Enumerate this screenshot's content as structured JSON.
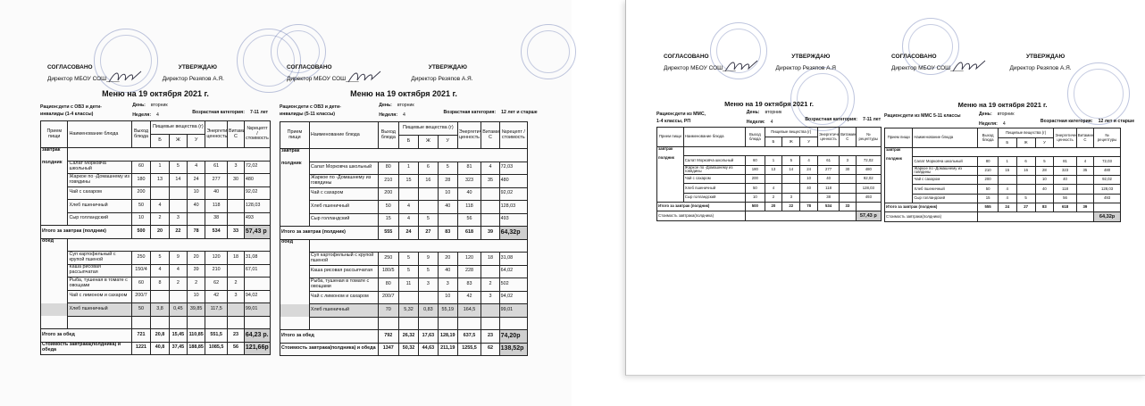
{
  "docs": [
    {
      "agreed": "СОГЛАСОВАНО",
      "agreed_by": "Директор МБОУ СОШ____",
      "approved": "УТВЕРЖДАЮ",
      "approved_by": "Директор Резяпов А.Я.",
      "title": "Меню на 19 октября 2021 г.",
      "ration": [
        "Рацион:дети с ОВЗ и дети-",
        "инвалиды (1-4 классы)"
      ],
      "day_label": "День:",
      "day": "вторник",
      "week_label": "Неделя:",
      "week": "4",
      "age_label": "Возрастная категория:",
      "age": "7-11 лет",
      "headers": {
        "meal": "Прием пищи",
        "name": "Наименование блюда",
        "yield": "Выход блюда",
        "nutrients": "Пищевые вещества (г)",
        "b": "Б",
        "zh": "Ж",
        "u": "У",
        "energy": "Энергетическая ценность",
        "vitc": "Витамин С",
        "last": "№рецепт /стоимость"
      },
      "rows": [
        {
          "meal": "завтрак",
          "empty": true
        },
        {
          "meal": "полдник",
          "cells": [
            "Салат Морковча школьный",
            "60",
            "1",
            "5",
            "4",
            "61",
            "3",
            "72,02"
          ]
        },
        {
          "cells": [
            "Жаркое по -Домашнему из говядины",
            "180",
            "13",
            "14",
            "24",
            "277",
            "30",
            "480"
          ]
        },
        {
          "cells": [
            "Чай с сахаром",
            "200",
            "",
            "",
            "10",
            "40",
            "",
            "92,02"
          ]
        },
        {
          "cells": [
            "Хлеб пшеничный",
            "50",
            "4",
            "",
            "40",
            "118",
            "",
            "128,03"
          ]
        },
        {
          "cells": [
            "Сыр голландский",
            "10",
            "2",
            "3",
            "",
            "38",
            "",
            "493"
          ]
        },
        {
          "total": true,
          "label": "Итого за завтрак (полдник)",
          "cells": [
            "500",
            "20",
            "22",
            "78",
            "534",
            "33",
            "57,43 р"
          ]
        },
        {
          "meal": "обед",
          "empty": true
        },
        {
          "cells": [
            "Суп картофельный с крупой пшеной",
            "250",
            "5",
            "9",
            "20",
            "120",
            "18",
            "31,08"
          ]
        },
        {
          "cells": [
            "Каша рисовая рассыпчатая",
            "150/4",
            "4",
            "4",
            "39",
            "210",
            "",
            "67,01"
          ]
        },
        {
          "cells": [
            "Рыба, тушеная в томате с овощами",
            "60",
            "8",
            "2",
            "2",
            "62",
            "2",
            ""
          ]
        },
        {
          "cells": [
            "Чай с лимоном и сахаром",
            "200/7",
            "",
            "",
            "10",
            "42",
            "3",
            "94,02"
          ]
        },
        {
          "shade": true,
          "cells": [
            "Хлеб пшеничный",
            "50",
            "3,8",
            "0,45",
            "39,85",
            "117,5",
            "",
            "99,01"
          ]
        },
        {
          "cells": [
            "",
            "",
            "",
            "",
            "",
            "",
            "",
            ""
          ]
        },
        {
          "total": true,
          "label": "Итого за обед",
          "cells": [
            "721",
            "20,8",
            "15,45",
            "110,85",
            "551,5",
            "23",
            "64,23 р."
          ]
        },
        {
          "total": true,
          "label": "Стоимость завтрака(полдника) и обеда",
          "cells": [
            "1221",
            "40,8",
            "37,45",
            "188,85",
            "1085,5",
            "56",
            "121,66р"
          ]
        }
      ]
    },
    {
      "agreed": "СОГЛАСОВАНО",
      "agreed_by": "Директор МБОУ СОШ____",
      "approved": "УТВЕРЖДАЮ",
      "approved_by": "Директор Резяпов А.Я.",
      "title": "Меню на 19 октября 2021 г.",
      "ration": [
        "Рацион:дети с ОВЗ и дети-",
        "инвалиды (5-11 классы)"
      ],
      "day_label": "День:",
      "day": "вторник",
      "week_label": "Неделя:",
      "week": "4",
      "age_label": "Возрастная категория:",
      "age": "12 лет и старше",
      "headers": {
        "meal": "Прием пищи",
        "name": "Наименование блюда",
        "yield": "Выход блюда",
        "nutrients": "Пищевые вещества (г)",
        "b": "Б",
        "zh": "Ж",
        "u": "У",
        "energy": "Энергетическая ценность",
        "vitc": "Витамин С",
        "last": "№рецепт /стоимость"
      },
      "rows": [
        {
          "meal": "завтрак",
          "empty": true
        },
        {
          "meal": "полдник",
          "cells": [
            "Салат Морковча школьный",
            "80",
            "1",
            "6",
            "5",
            "81",
            "4",
            "72,03"
          ]
        },
        {
          "cells": [
            "Жаркое по -Домашнему из говядины",
            "210",
            "15",
            "16",
            "28",
            "323",
            "35",
            "480"
          ]
        },
        {
          "cells": [
            "Чай с сахаром",
            "200",
            "",
            "",
            "10",
            "40",
            "",
            "92,02"
          ]
        },
        {
          "cells": [
            "Хлеб пшеничный",
            "50",
            "4",
            "",
            "40",
            "118",
            "",
            "128,03"
          ]
        },
        {
          "cells": [
            "Сыр голландский",
            "15",
            "4",
            "5",
            "",
            "56",
            "",
            "493"
          ]
        },
        {
          "total": true,
          "label": "Итого за завтрак (полдник)",
          "cells": [
            "555",
            "24",
            "27",
            "83",
            "618",
            "39",
            "64,32р"
          ]
        },
        {
          "meal": "обед",
          "empty": true
        },
        {
          "cells": [
            "Суп картофельный с крупой пшеной",
            "250",
            "5",
            "9",
            "20",
            "120",
            "18",
            "31,08"
          ]
        },
        {
          "cells": [
            "Каша рисовая рассыпчатая",
            "180/5",
            "5",
            "5",
            "40",
            "228",
            "",
            "64,02"
          ]
        },
        {
          "cells": [
            "Рыба, тушеная в томате с овощами",
            "80",
            "11",
            "3",
            "3",
            "83",
            "2",
            "502"
          ]
        },
        {
          "cells": [
            "Чай с лимоном и сахаром",
            "200/7",
            "",
            "",
            "10",
            "42",
            "3",
            "94,02"
          ]
        },
        {
          "shade": true,
          "cells": [
            "Хлеб пшеничный",
            "70",
            "5,32",
            "0,83",
            "55,19",
            "164,5",
            "",
            "99,01"
          ]
        },
        {
          "cells": [
            "",
            "",
            "",
            "",
            "",
            "",
            "",
            ""
          ]
        },
        {
          "total": true,
          "label": "Итого за обед",
          "cells": [
            "792",
            "26,32",
            "17,63",
            "128,19",
            "637,5",
            "23",
            "74,20р"
          ]
        },
        {
          "total": true,
          "label": "Стоимость завтрака(полдника) и обеда",
          "cells": [
            "1347",
            "50,32",
            "44,63",
            "211,19",
            "1255,5",
            "62",
            "138,52р"
          ]
        }
      ]
    },
    {
      "agreed": "СОГЛАСОВАНО",
      "agreed_by": "Директор МБОУ СОШ____",
      "approved": "УТВЕРЖДАЮ",
      "approved_by": "Директор Резяпов А.Я",
      "title": "Меню на 19 октября 2021 г.",
      "ration": [
        "Рацион:дети из ММС,",
        "1-4 классы, РП"
      ],
      "day_label": "День:",
      "day": "вторник",
      "week_label": "Неделя:",
      "week": "4",
      "age_label": "Возрастная категория:",
      "age": "7-11 лет",
      "headers": {
        "meal": "Прием пищи",
        "name": "Наименование блюда",
        "yield": "Выход блюда",
        "nutrients": "Пищевые вещества (г)",
        "b": "Б",
        "zh": "Ж",
        "u": "У",
        "energy": "Энергетическая ценность",
        "vitc": "Витамин С",
        "last": "№ рецептуры"
      },
      "rows": [
        {
          "meal": "завтрак",
          "empty": true
        },
        {
          "meal": "полдник",
          "cells": [
            "Салат Морковча школьный",
            "60",
            "1",
            "5",
            "4",
            "61",
            "3",
            "72,02"
          ]
        },
        {
          "cells": [
            "Жаркое по -Домашнему из говядины",
            "180",
            "13",
            "14",
            "24",
            "277",
            "30",
            "480"
          ]
        },
        {
          "cells": [
            "Чай с сахаром",
            "200",
            "",
            "",
            "10",
            "40",
            "",
            "92,02"
          ]
        },
        {
          "cells": [
            "Хлеб пшеничный",
            "50",
            "4",
            "",
            "40",
            "118",
            "",
            "128,03"
          ]
        },
        {
          "cells": [
            "Сыр голландский",
            "10",
            "2",
            "3",
            "",
            "38",
            "",
            "493"
          ]
        },
        {
          "total": true,
          "label": "Итого за завтрак (полдник)",
          "cells": [
            "500",
            "20",
            "22",
            "78",
            "534",
            "33",
            ""
          ]
        },
        {
          "cost": true,
          "label": "Стоимость завтрака(полдника)",
          "value": "57,43 р"
        }
      ]
    },
    {
      "agreed": "СОГЛАСОВАНО",
      "agreed_by": "Директор МБОУ СОШ____",
      "approved": "УТВЕРЖДАЮ",
      "approved_by": "Директор Резяпов А.Я.",
      "title": "Меню на 19 октября 2021 г.",
      "ration": [
        "Рацион:дети из ММС 5-11 классы",
        ""
      ],
      "day_label": "День:",
      "day": "вторник",
      "week_label": "Неделя:",
      "week": "4",
      "age_label": "Возрастная категория:",
      "age": "12 лет и старше",
      "headers": {
        "meal": "Прием пищи",
        "name": "Наименование блюда",
        "yield": "Выход блюда",
        "nutrients": "Пищевые вещества (г)",
        "b": "Б",
        "zh": "Ж",
        "u": "У",
        "energy": "Энергетическая ценность",
        "vitc": "Витамин С",
        "last": "№ рецептуры"
      },
      "rows": [
        {
          "meal": "завтрак",
          "empty": true
        },
        {
          "meal": "полдник",
          "cells": [
            "Салат Морковча школьный",
            "80",
            "1",
            "6",
            "5",
            "81",
            "4",
            "72,03"
          ]
        },
        {
          "cells": [
            "Жаркое по -Домашнему из говядины",
            "210",
            "15",
            "16",
            "28",
            "323",
            "35",
            "480"
          ]
        },
        {
          "cells": [
            "Чай с сахаром",
            "200",
            "",
            "",
            "10",
            "40",
            "",
            "92,02"
          ]
        },
        {
          "cells": [
            "Хлеб пшеничный",
            "50",
            "4",
            "",
            "40",
            "118",
            "",
            "128,03"
          ]
        },
        {
          "cells": [
            "Сыр голландский",
            "15",
            "4",
            "5",
            "",
            "56",
            "",
            "493"
          ]
        },
        {
          "total": true,
          "label": "Итого за завтрак (полдник)",
          "cells": [
            "555",
            "24",
            "27",
            "83",
            "618",
            "39",
            ""
          ]
        },
        {
          "cost": true,
          "label": "Стоимость завтрака(полдника)",
          "value": "64,32р"
        }
      ]
    }
  ]
}
